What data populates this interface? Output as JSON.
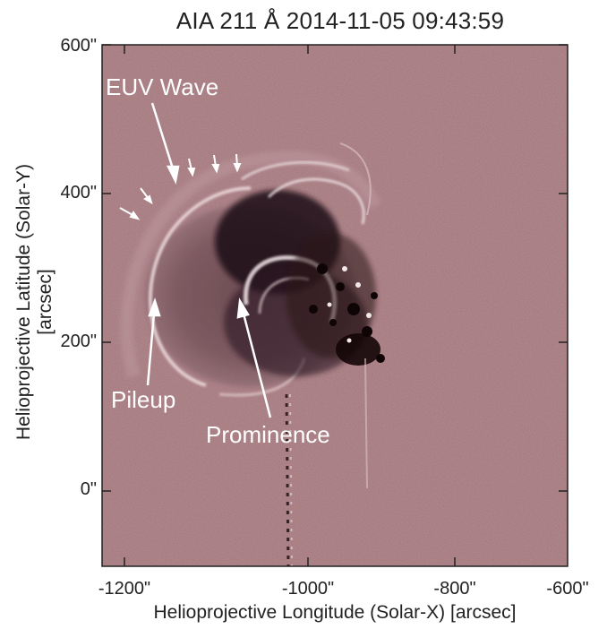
{
  "figure": {
    "title": "AIA 211 Å 2014-11-05 09:43:59",
    "xlabel": "Helioprojective Longitude (Solar-X) [arcsec]",
    "ylabel": "Helioprojective Latitude (Solar-Y) [arcsec]",
    "x_ticks": [
      "-1200\"",
      "-1000\"",
      "-800\"",
      "-600\""
    ],
    "y_ticks": [
      "600\"",
      "400\"",
      "200\"",
      "0\""
    ],
    "image_tint": "#a4787d"
  },
  "annotations": {
    "euv_wave": "EUV Wave",
    "pileup": "Pileup",
    "prominence": "Prominence"
  }
}
